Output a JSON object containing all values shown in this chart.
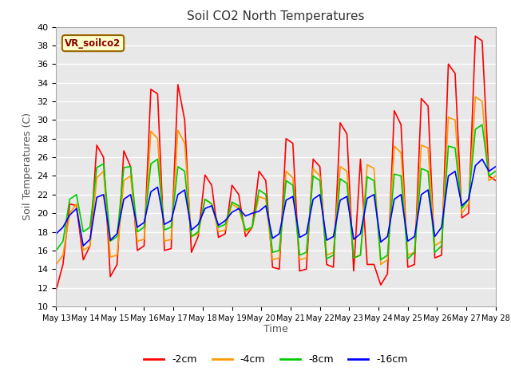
{
  "title": "Soil CO2 North Temperatures",
  "xlabel": "Time",
  "ylabel": "Soil Temperatures (C)",
  "annotation": "VR_soilco2",
  "ylim": [
    10,
    40
  ],
  "colors": {
    "-2cm": "#ff0000",
    "-4cm": "#ff9900",
    "-8cm": "#00cc00",
    "-16cm": "#0000ff"
  },
  "xtick_labels": [
    "May 13",
    "May 14",
    "May 15",
    "May 16",
    "May 17",
    "May 18",
    "May 19",
    "May 20",
    "May 21",
    "May 22",
    "May 23",
    "May 24",
    "May 25",
    "May 26",
    "May 27",
    "May 28"
  ],
  "background_color": "#ffffff",
  "plot_bg": "#e8e8e8",
  "series_2cm": [
    11.8,
    14.5,
    21.0,
    20.8,
    15.0,
    16.5,
    27.3,
    26.0,
    13.2,
    14.5,
    26.7,
    25.0,
    16.0,
    16.5,
    33.3,
    32.8,
    16.0,
    16.2,
    33.8,
    30.0,
    15.8,
    17.5,
    24.1,
    23.0,
    17.4,
    17.8,
    23.0,
    22.0,
    17.5,
    18.5,
    24.5,
    23.5,
    14.2,
    14.0,
    28.0,
    27.5,
    13.8,
    14.0,
    25.8,
    25.0,
    14.5,
    14.2,
    29.7,
    28.5,
    13.8,
    25.8,
    14.5,
    14.5,
    12.3,
    13.5,
    31.0,
    29.5,
    14.2,
    14.5,
    32.3,
    31.5,
    15.2,
    15.5,
    36.0,
    35.0,
    19.5,
    20.0,
    39.0,
    38.5,
    24.0,
    23.5
  ],
  "series_4cm": [
    14.5,
    15.5,
    20.0,
    21.0,
    16.0,
    16.5,
    23.8,
    24.5,
    15.3,
    15.5,
    23.5,
    24.0,
    17.0,
    17.2,
    28.8,
    28.0,
    17.0,
    17.2,
    28.9,
    27.5,
    17.5,
    17.8,
    21.5,
    21.0,
    18.0,
    18.2,
    21.0,
    20.5,
    18.0,
    18.5,
    21.8,
    21.5,
    15.0,
    15.2,
    24.5,
    23.8,
    15.0,
    15.2,
    24.8,
    24.0,
    15.5,
    15.8,
    25.0,
    24.5,
    15.2,
    15.5,
    25.2,
    24.8,
    14.5,
    15.0,
    27.2,
    26.5,
    15.5,
    15.8,
    27.3,
    27.0,
    16.5,
    17.0,
    30.3,
    30.0,
    20.0,
    21.0,
    32.5,
    32.0,
    23.5,
    24.0
  ],
  "series_8cm": [
    16.0,
    17.0,
    21.5,
    22.0,
    18.0,
    18.5,
    24.9,
    25.3,
    17.0,
    17.5,
    24.9,
    25.0,
    18.0,
    18.5,
    25.3,
    25.8,
    18.2,
    18.5,
    25.0,
    24.5,
    17.5,
    18.0,
    21.5,
    21.0,
    18.5,
    18.8,
    21.2,
    20.8,
    18.2,
    18.5,
    22.5,
    22.0,
    15.8,
    16.0,
    23.5,
    23.0,
    15.5,
    15.8,
    24.0,
    23.5,
    15.1,
    15.5,
    23.7,
    23.2,
    15.2,
    15.5,
    23.9,
    23.5,
    15.0,
    15.5,
    24.2,
    24.0,
    15.1,
    15.8,
    24.8,
    24.5,
    15.8,
    16.5,
    27.2,
    27.0,
    20.5,
    21.5,
    29.0,
    29.5,
    24.0,
    24.5
  ],
  "series_16cm": [
    17.8,
    18.5,
    19.8,
    20.5,
    16.5,
    17.2,
    21.7,
    22.0,
    17.1,
    17.8,
    21.5,
    22.0,
    18.5,
    19.0,
    22.3,
    22.8,
    18.8,
    19.2,
    22.0,
    22.5,
    18.2,
    18.8,
    20.5,
    20.8,
    18.7,
    19.2,
    20.1,
    20.5,
    19.7,
    20.0,
    20.2,
    20.8,
    17.3,
    17.8,
    21.4,
    21.8,
    17.4,
    17.8,
    21.5,
    22.0,
    17.1,
    17.5,
    21.4,
    21.8,
    17.2,
    17.8,
    21.6,
    22.0,
    16.9,
    17.5,
    21.5,
    22.0,
    17.0,
    17.5,
    22.0,
    22.5,
    17.5,
    18.5,
    24.0,
    24.5,
    20.8,
    21.5,
    25.1,
    25.8,
    24.5,
    25.0
  ]
}
